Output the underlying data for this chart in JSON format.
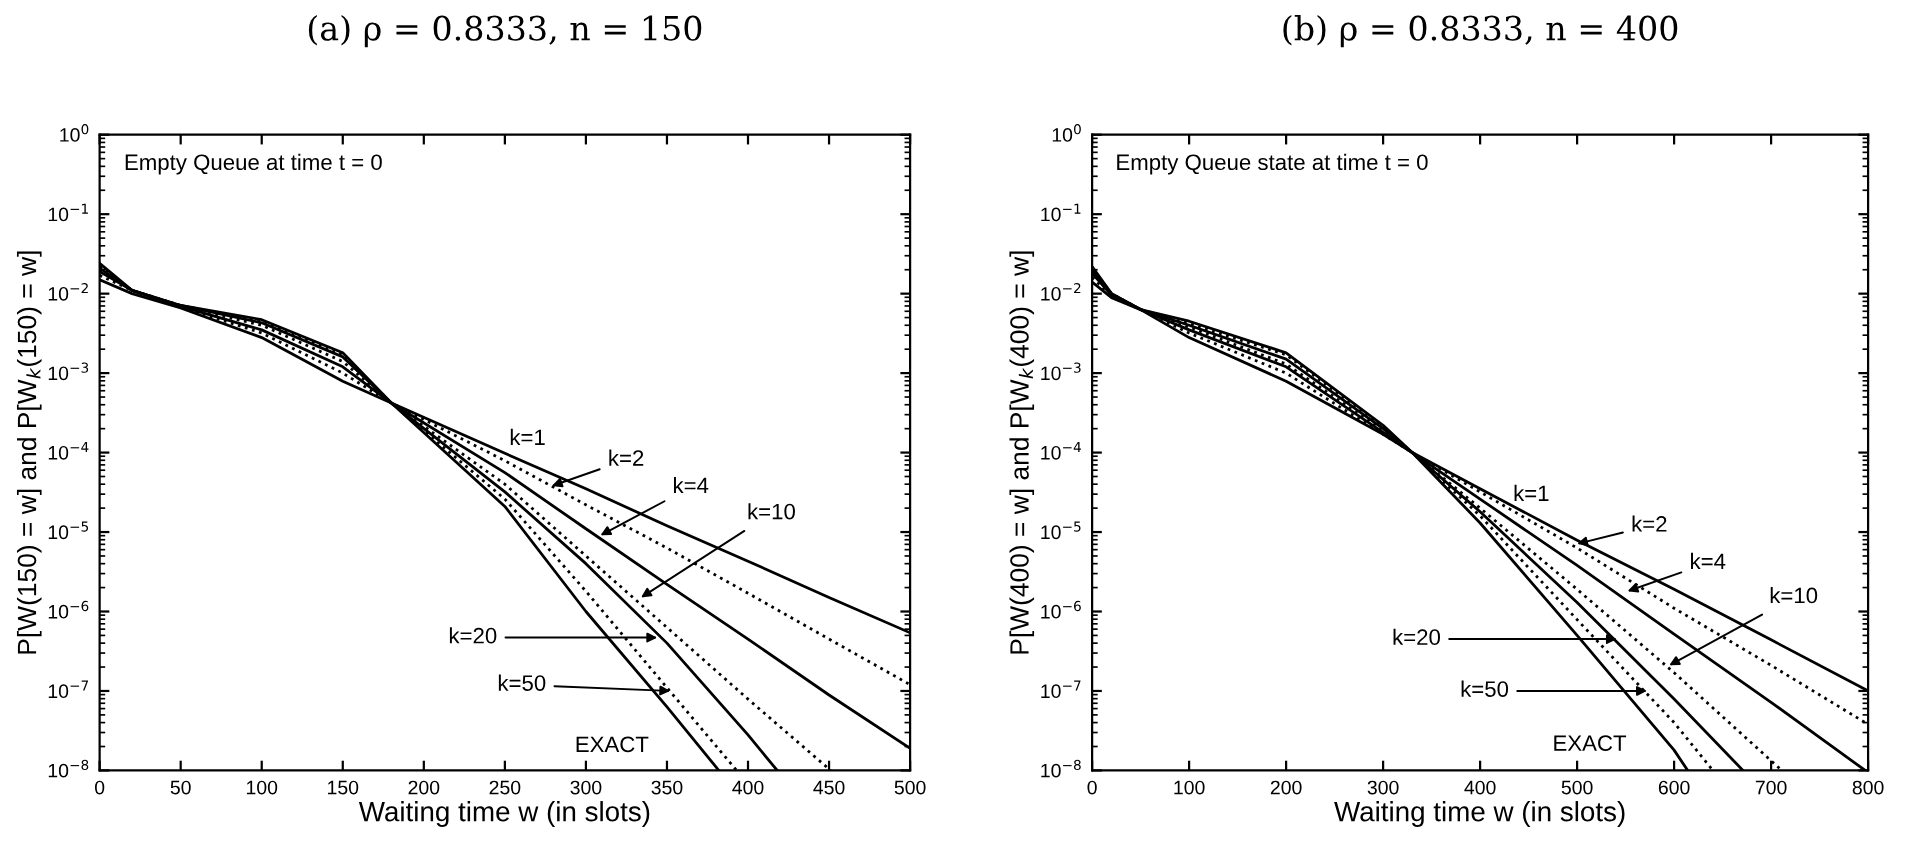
{
  "chart_data": [
    {
      "type": "line",
      "title": "(a) ρ = 0.8333, n = 150",
      "xlabel": "Waiting time w (in slots)",
      "ylabel": "P[W(150) = w] and P[W$_{k}$(150) = w]",
      "log": "y",
      "grid": false,
      "legend": false,
      "xlim": [
        0,
        500
      ],
      "xticks": [
        0,
        50,
        100,
        150,
        200,
        250,
        300,
        350,
        400,
        450,
        500
      ],
      "ylim": [
        1e-08,
        1
      ],
      "yticks": [
        {
          "value": 1e-08,
          "label": "10$^{−8}$"
        },
        {
          "value": 1e-07,
          "label": "10$^{−7}$"
        },
        {
          "value": 1e-06,
          "label": "10$^{−6}$"
        },
        {
          "value": 1e-05,
          "label": "10$^{−5}$"
        },
        {
          "value": 0.0001,
          "label": "10$^{−4}$"
        },
        {
          "value": 0.001,
          "label": "10$^{−3}$"
        },
        {
          "value": 0.01,
          "label": "10$^{−2}$"
        },
        {
          "value": 0.1,
          "label": "10$^{−1}$"
        },
        {
          "value": 1,
          "label": "10$^{0}$"
        }
      ],
      "series": [
        {
          "color": "#000000",
          "line_style": "solid",
          "x": [
            0,
            20,
            50,
            100,
            150,
            180,
            250,
            300,
            350,
            400,
            450,
            500
          ],
          "values": [
            0.015,
            0.01,
            0.0066,
            0.0028,
            0.00079,
            0.00042,
            9.8e-05,
            3.5e-05,
            1.2e-05,
            4.3e-06,
            1.5e-06,
            5.4e-07
          ]
        },
        {
          "color": "#000000",
          "line_style": "dotted",
          "x": [
            0,
            20,
            50,
            100,
            150,
            180,
            250,
            300,
            350,
            400,
            450,
            500
          ],
          "values": [
            0.017,
            0.011,
            0.0068,
            0.0032,
            0.001,
            0.00042,
            7.9e-05,
            2.2e-05,
            6.3e-06,
            1.7e-06,
            4.5e-07,
            1.2e-07
          ]
        },
        {
          "color": "#000000",
          "line_style": "solid",
          "x": [
            0,
            20,
            50,
            100,
            150,
            180,
            250,
            300,
            350,
            400,
            450,
            500
          ],
          "values": [
            0.019,
            0.011,
            0.0069,
            0.0035,
            0.0012,
            0.00042,
            5.6e-05,
            1.1e-05,
            2.2e-06,
            4.5e-07,
            8.9e-08,
            1.9e-08
          ]
        },
        {
          "color": "#000000",
          "line_style": "dotted",
          "x": [
            0,
            20,
            50,
            100,
            150,
            180,
            250,
            300,
            350,
            400,
            451
          ],
          "values": [
            0.02,
            0.011,
            0.0069,
            0.004,
            0.0014,
            0.00042,
            4e-05,
            5e-06,
            6.3e-07,
            7.9e-08,
            1e-08
          ]
        },
        {
          "color": "#000000",
          "line_style": "solid",
          "x": [
            0,
            20,
            50,
            100,
            150,
            180,
            250,
            300,
            350,
            400,
            418
          ],
          "values": [
            0.021,
            0.011,
            0.0071,
            0.0043,
            0.0016,
            0.00042,
            3.2e-05,
            4e-06,
            4e-07,
            2.8e-08,
            1e-08
          ]
        },
        {
          "color": "#000000",
          "line_style": "dotted",
          "x": [
            0,
            20,
            50,
            100,
            150,
            180,
            250,
            300,
            350,
            393
          ],
          "values": [
            0.022,
            0.011,
            0.0071,
            0.0045,
            0.0017,
            0.00042,
            2.6e-05,
            1.8e-06,
            1.1e-07,
            1e-08
          ]
        },
        {
          "color": "#000000",
          "line_style": "solid",
          "x": [
            0,
            20,
            50,
            100,
            150,
            180,
            250,
            300,
            350,
            382
          ],
          "values": [
            0.024,
            0.011,
            0.0071,
            0.0047,
            0.0018,
            0.00042,
            2.1e-05,
            1e-06,
            6.3e-08,
            1e-08
          ]
        }
      ],
      "annotations": [
        "Empty Queue at time t = 0",
        "k=1",
        {
          "text": "k=2",
          "x": 279,
          "y": 3.8e-05
        },
        {
          "text": "k=4",
          "x": 309,
          "y": 9.1e-06
        },
        {
          "text": "k=10",
          "x": 334,
          "y": 1.5e-06
        },
        {
          "text": "k=20",
          "x": 344,
          "y": 4.7e-07
        },
        {
          "text": "k=50",
          "x": 352,
          "y": 1e-07
        },
        "EXACT"
      ]
    },
    {
      "type": "line",
      "title": "(b) ρ = 0.8333, n = 400",
      "xlabel": "Waiting time w (in slots)",
      "ylabel": "P[W(400) = w] and P[W$_{k}$(400) = w]",
      "log": "y",
      "grid": false,
      "legend": false,
      "xlim": [
        0,
        800
      ],
      "xticks": [
        0,
        100,
        200,
        300,
        400,
        500,
        600,
        700,
        800
      ],
      "ylim": [
        1e-08,
        1
      ],
      "yticks": [
        {
          "value": 1e-08,
          "label": "10$^{−8}$"
        },
        {
          "value": 1e-07,
          "label": "10$^{−7}$"
        },
        {
          "value": 1e-06,
          "label": "10$^{−6}$"
        },
        {
          "value": 1e-05,
          "label": "10$^{−5}$"
        },
        {
          "value": 0.0001,
          "label": "10$^{−4}$"
        },
        {
          "value": 0.001,
          "label": "10$^{−3}$"
        },
        {
          "value": 0.01,
          "label": "10$^{−2}$"
        },
        {
          "value": 0.1,
          "label": "10$^{−1}$"
        },
        {
          "value": 1,
          "label": "10$^{0}$"
        }
      ],
      "series": [
        {
          "color": "#000000",
          "line_style": "solid",
          "x": [
            0,
            20,
            50,
            100,
            200,
            300,
            330,
            400,
            500,
            600,
            700,
            800
          ],
          "values": [
            0.014,
            0.0089,
            0.0063,
            0.0028,
            0.00079,
            0.00017,
            0.0001,
            3.5e-05,
            7.9e-06,
            1.9e-06,
            4.4e-07,
            1e-07
          ]
        },
        {
          "color": "#000000",
          "line_style": "dotted",
          "x": [
            0,
            20,
            50,
            100,
            200,
            300,
            330,
            400,
            500,
            600,
            700,
            800
          ],
          "values": [
            0.016,
            0.0093,
            0.0063,
            0.0032,
            0.001,
            0.00017,
            0.0001,
            3.2e-05,
            6.3e-06,
            1.1e-06,
            2.1e-07,
            3.8e-08
          ]
        },
        {
          "color": "#000000",
          "line_style": "solid",
          "x": [
            0,
            20,
            50,
            100,
            200,
            300,
            330,
            400,
            500,
            600,
            700,
            797
          ],
          "values": [
            0.018,
            0.0095,
            0.0063,
            0.0035,
            0.0012,
            0.00018,
            0.0001,
            2.6e-05,
            3.8e-06,
            5.2e-07,
            7.2e-08,
            1e-08
          ]
        },
        {
          "color": "#000000",
          "line_style": "dotted",
          "x": [
            0,
            20,
            50,
            100,
            200,
            300,
            330,
            400,
            500,
            600,
            711
          ],
          "values": [
            0.019,
            0.0098,
            0.0063,
            0.0038,
            0.0013,
            0.00019,
            0.0001,
            2e-05,
            1.9e-06,
            1.7e-07,
            1e-08
          ]
        },
        {
          "color": "#000000",
          "line_style": "solid",
          "x": [
            0,
            20,
            50,
            100,
            200,
            300,
            330,
            400,
            500,
            600,
            671
          ],
          "values": [
            0.02,
            0.01,
            0.0063,
            0.004,
            0.0015,
            0.0002,
            0.0001,
            1.8e-05,
            1.3e-06,
            7.9e-08,
            1e-08
          ]
        },
        {
          "color": "#000000",
          "line_style": "dotted",
          "x": [
            0,
            20,
            50,
            100,
            200,
            300,
            330,
            400,
            500,
            600,
            640
          ],
          "values": [
            0.021,
            0.01,
            0.0063,
            0.0042,
            0.0017,
            0.00021,
            0.0001,
            1.6e-05,
            7.9e-07,
            4e-08,
            1e-08
          ]
        },
        {
          "color": "#000000",
          "line_style": "solid",
          "x": [
            0,
            20,
            50,
            100,
            200,
            300,
            330,
            400,
            500,
            600,
            614
          ],
          "values": [
            0.022,
            0.01,
            0.0063,
            0.0045,
            0.0018,
            0.00022,
            0.0001,
            1.3e-05,
            5e-07,
            1.8e-08,
            1e-08
          ]
        }
      ],
      "annotations": [
        "Empty Queue state at time t = 0",
        "k=1",
        {
          "text": "k=2",
          "x": 500,
          "y": 7.1e-06
        },
        {
          "text": "k=4",
          "x": 552,
          "y": 1.8e-06
        },
        {
          "text": "k=10",
          "x": 595,
          "y": 2.1e-07
        },
        {
          "text": "k=20",
          "x": 541,
          "y": 4.5e-07
        },
        {
          "text": "k=50",
          "x": 572,
          "y": 1e-07
        },
        "EXACT"
      ]
    }
  ]
}
